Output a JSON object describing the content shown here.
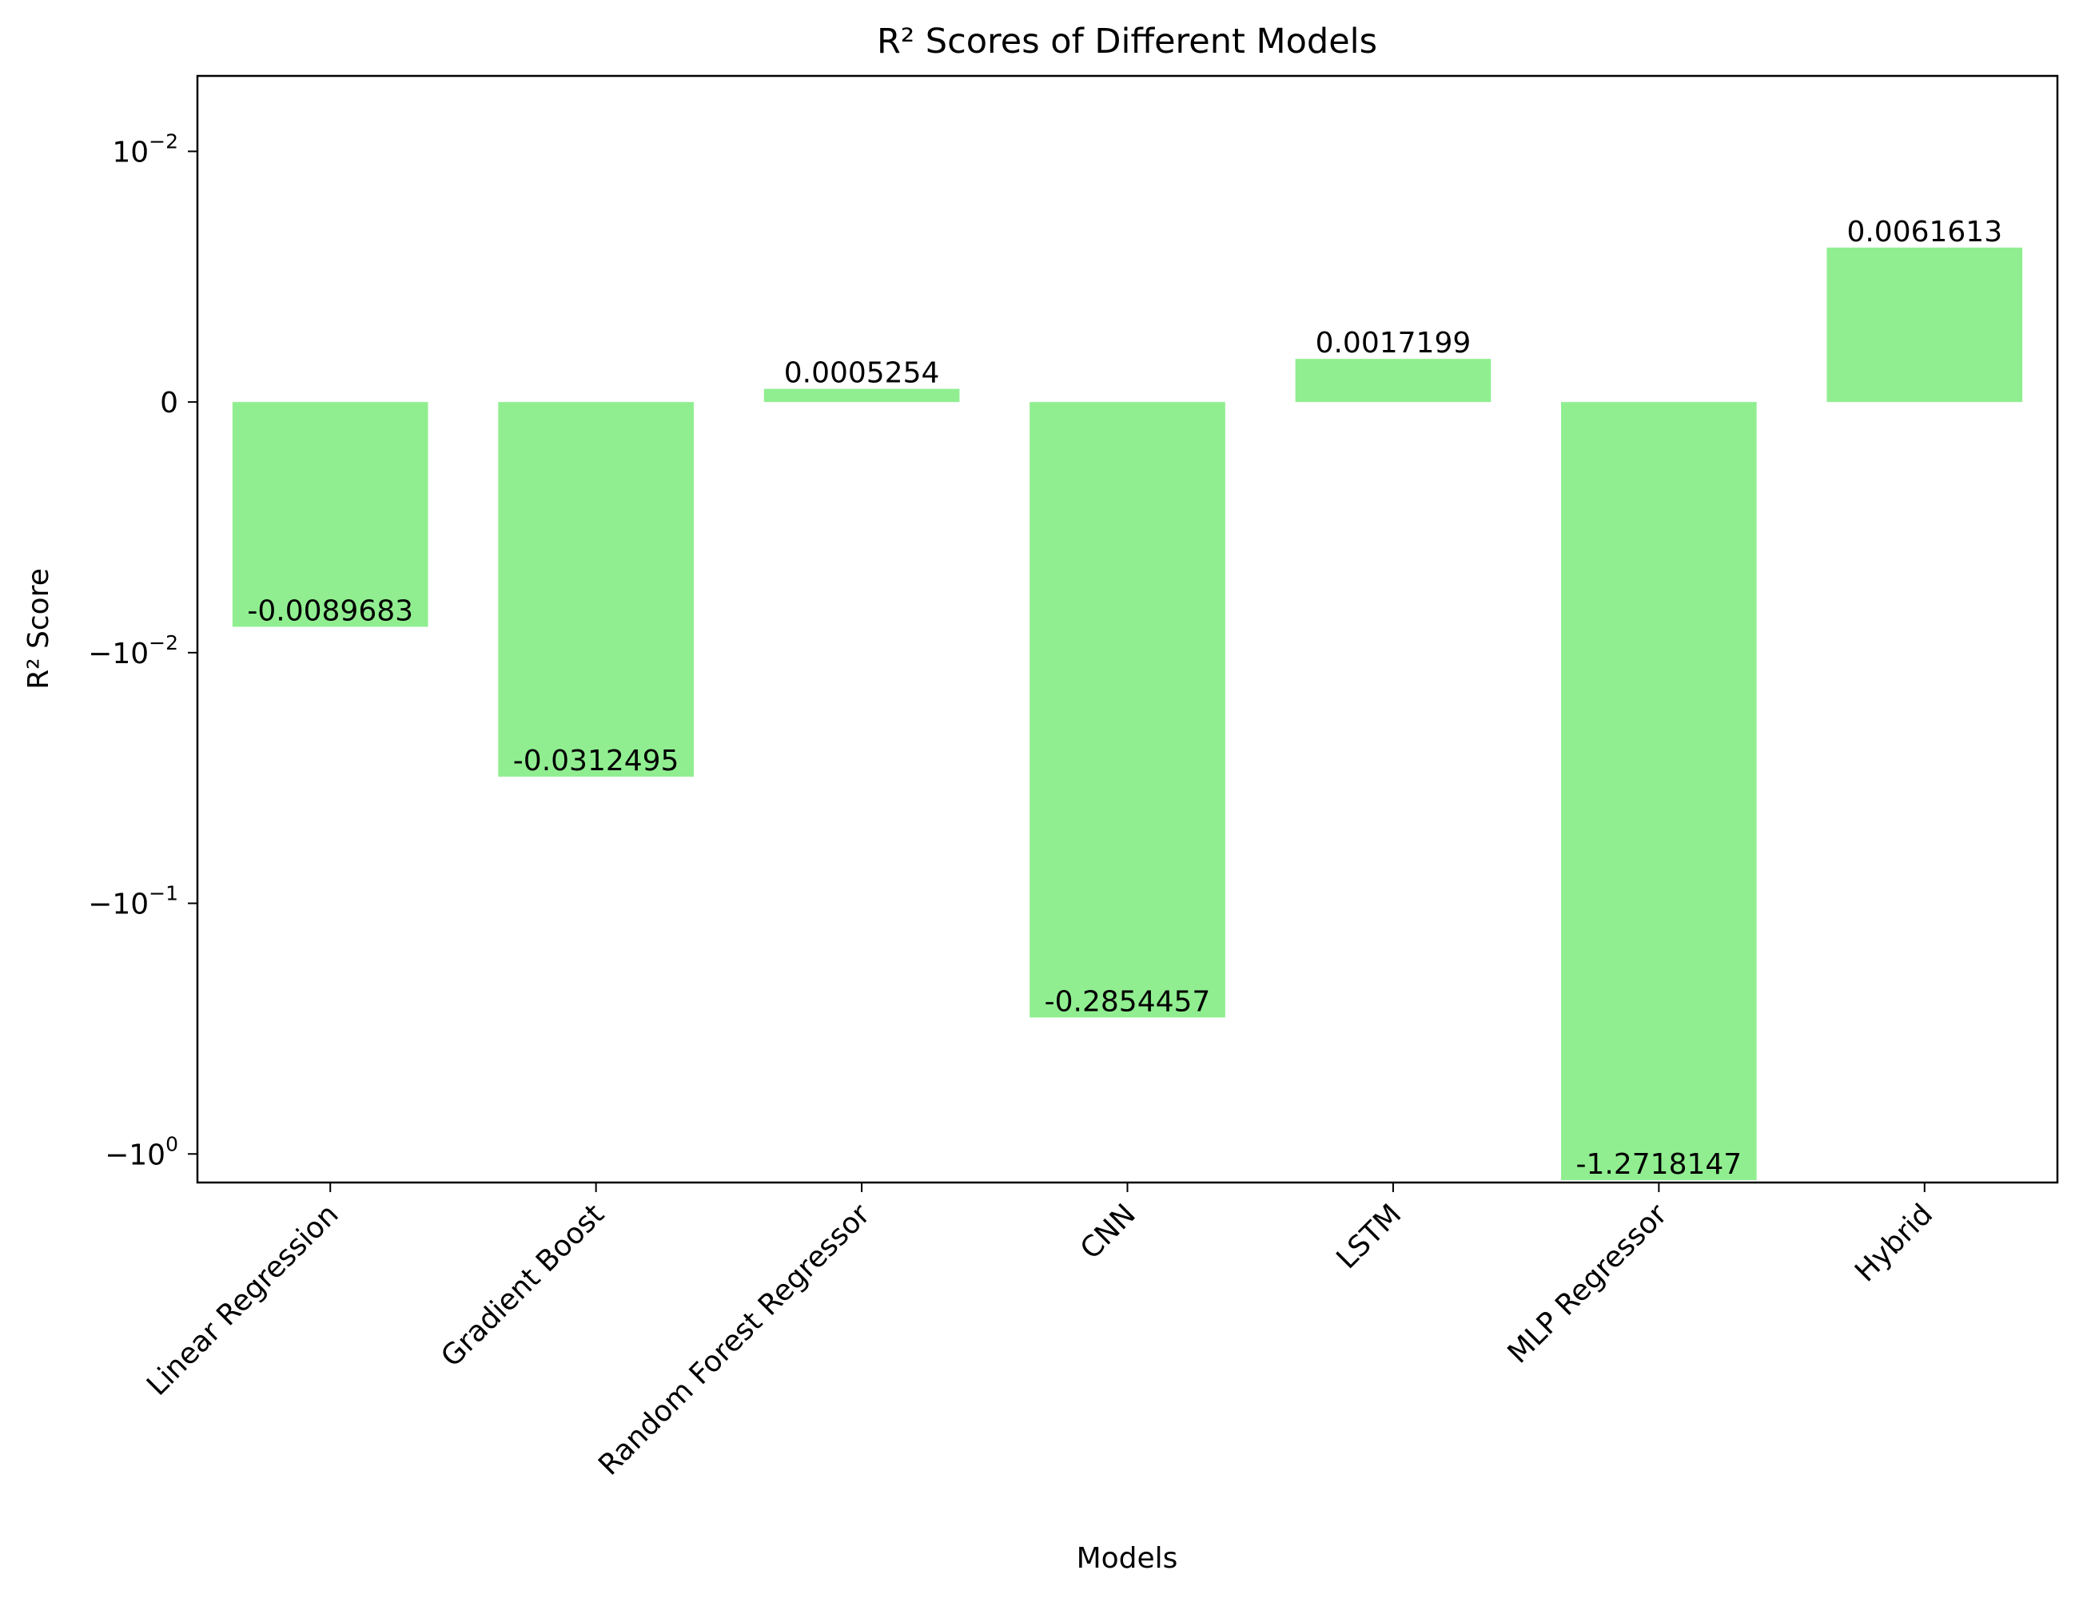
{
  "chart_data": {
    "type": "bar",
    "title": "R² Scores of Different Models",
    "xlabel": "Models",
    "ylabel": "R² Score",
    "categories": [
      "Linear Regression",
      "Gradient Boost",
      "Random Forest Regressor",
      "CNN",
      "LSTM",
      "MLP Regressor",
      "Hybrid"
    ],
    "values": [
      -0.0089683,
      -0.0312495,
      0.0005254,
      -0.2854457,
      0.0017199,
      -1.2718147,
      0.0061613
    ],
    "data_labels": [
      "-0.0089683",
      "-0.0312495",
      "0.0005254",
      "-0.2854457",
      "0.0017199",
      "-1.2718147",
      "0.0061613"
    ],
    "yscale": "symlog",
    "linthresh": 0.01,
    "ylim": [
      -1.3,
      0.02
    ],
    "yticks": [
      {
        "value": 0.01,
        "base": "10",
        "exp": "−2",
        "sign": ""
      },
      {
        "value": 0,
        "text": "0"
      },
      {
        "value": -0.01,
        "base": "10",
        "exp": "−2",
        "sign": "−"
      },
      {
        "value": -0.1,
        "base": "10",
        "exp": "−1",
        "sign": "−"
      },
      {
        "value": -1,
        "base": "10",
        "exp": "0",
        "sign": "−"
      }
    ],
    "grid": false,
    "legend": "none",
    "bar_color": "#90ee90"
  }
}
